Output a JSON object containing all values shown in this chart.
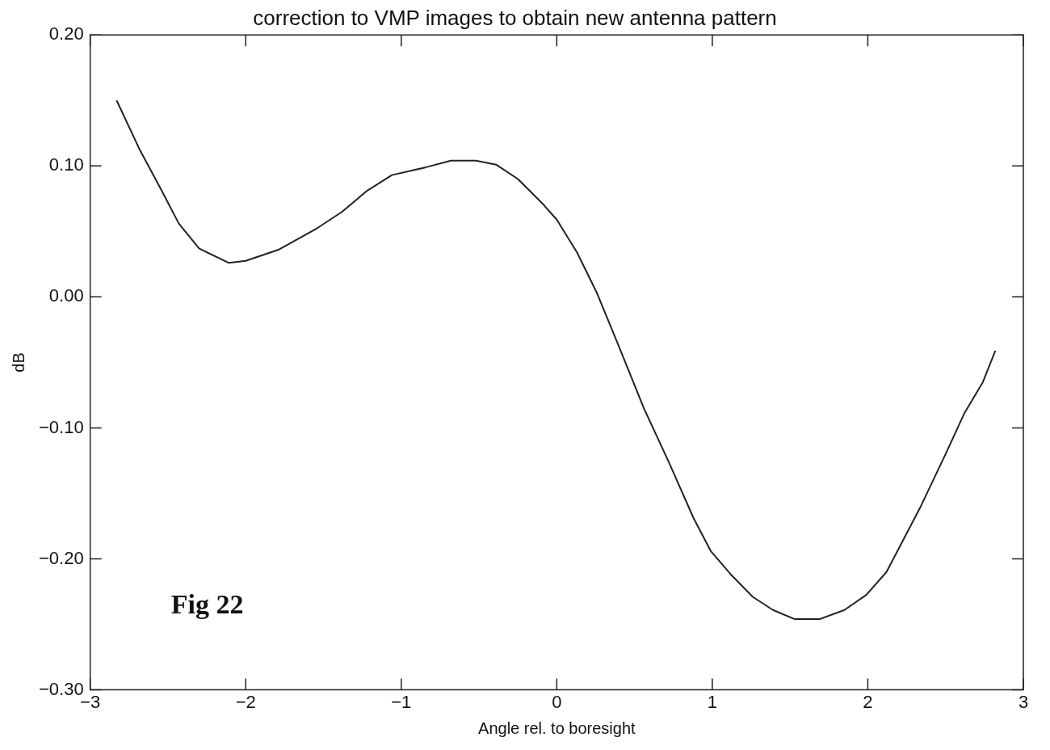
{
  "chart_data": {
    "type": "line",
    "title": "correction to VMP images to obtain new antenna pattern",
    "xlabel": "Angle rel. to boresight",
    "ylabel": "dB",
    "annotations": [
      "Fig 22"
    ],
    "xlim": [
      -3,
      3
    ],
    "xticks": [
      {
        "value": -3,
        "label": "−3"
      },
      {
        "value": -2,
        "label": "−2"
      },
      {
        "value": -1,
        "label": "−1"
      },
      0,
      1,
      2,
      3
    ],
    "ylim": [
      -0.3,
      0.2
    ],
    "yticks": [
      {
        "value": -0.3,
        "label": "−0.30"
      },
      {
        "value": -0.2,
        "label": "−0.20"
      },
      {
        "value": -0.1,
        "label": "−0.10"
      },
      {
        "value": 0,
        "label": "0.00"
      },
      {
        "value": 0.1,
        "label": "0.10"
      },
      {
        "value": 0.2,
        "label": "0.20"
      }
    ],
    "grid": false,
    "legend": false,
    "marker": "none",
    "line_style": "solid",
    "series": [
      {
        "color": "#222222",
        "x": [
          -2.83,
          -2.68,
          -2.54,
          -2.43,
          -2.3,
          -2.11,
          -2.0,
          -1.79,
          -1.54,
          -1.38,
          -1.22,
          -1.06,
          -0.84,
          -0.68,
          -0.52,
          -0.39,
          -0.25,
          -0.09,
          0.0,
          0.13,
          0.26,
          0.4,
          0.56,
          0.72,
          0.88,
          0.99,
          1.12,
          1.26,
          1.39,
          1.53,
          1.69,
          1.85,
          1.99,
          2.12,
          2.34,
          2.5,
          2.62,
          2.74,
          2.82
        ],
        "values": [
          0.15,
          0.112,
          0.081,
          0.056,
          0.037,
          0.026,
          0.0275,
          0.036,
          0.0525,
          0.065,
          0.081,
          0.093,
          0.099,
          0.104,
          0.104,
          0.101,
          0.09,
          0.071,
          0.059,
          0.034,
          0.0025,
          -0.038,
          -0.085,
          -0.126,
          -0.169,
          -0.194,
          -0.212,
          -0.229,
          -0.239,
          -0.246,
          -0.246,
          -0.239,
          -0.2275,
          -0.21,
          -0.16,
          -0.12,
          -0.089,
          -0.065,
          -0.041
        ]
      }
    ]
  }
}
